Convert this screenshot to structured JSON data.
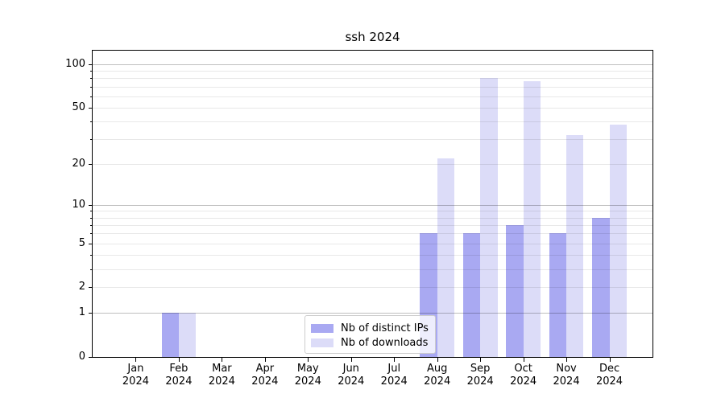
{
  "figure": {
    "title": "ssh 2024",
    "background": "#ffffff"
  },
  "chart_data": {
    "type": "bar",
    "title": "ssh 2024",
    "xlabel": "",
    "ylabel": "",
    "grid": "horizontal",
    "y_axis": {
      "scale": "log10(1+value)",
      "ylim": [
        0,
        124
      ],
      "tick_labels": [
        "100",
        "50",
        "20",
        "10",
        "5",
        "2",
        "1",
        "0"
      ],
      "tick_values": [
        100,
        50,
        20,
        10,
        5,
        2,
        1,
        0
      ],
      "decade_gridlines": [
        1,
        10,
        100
      ],
      "minor_gridlines": [
        2,
        3,
        4,
        5,
        6,
        7,
        8,
        9,
        20,
        30,
        40,
        50,
        60,
        70,
        80,
        90
      ]
    },
    "x_ticks": [
      {
        "line1": "Jan",
        "line2": "2024"
      },
      {
        "line1": "Feb",
        "line2": "2024"
      },
      {
        "line1": "Mar",
        "line2": "2024"
      },
      {
        "line1": "Apr",
        "line2": "2024"
      },
      {
        "line1": "May",
        "line2": "2024"
      },
      {
        "line1": "Jun",
        "line2": "2024"
      },
      {
        "line1": "Jul",
        "line2": "2024"
      },
      {
        "line1": "Aug",
        "line2": "2024"
      },
      {
        "line1": "Sep",
        "line2": "2024"
      },
      {
        "line1": "Oct",
        "line2": "2024"
      },
      {
        "line1": "Nov",
        "line2": "2024"
      },
      {
        "line1": "Dec",
        "line2": "2024"
      }
    ],
    "series": [
      {
        "name": "Nb of distinct IPs",
        "color": "#a9a9f2",
        "values": [
          0,
          1,
          0,
          0,
          0,
          0,
          0,
          6,
          6,
          7,
          6,
          8
        ]
      },
      {
        "name": "Nb of downloads",
        "color": "#dcdcf8",
        "values": [
          0,
          1,
          0,
          0,
          0,
          0,
          0,
          22,
          80,
          76,
          32,
          38
        ]
      }
    ],
    "legend": {
      "position": "lower center",
      "entries": [
        "Nb of distinct IPs",
        "Nb of downloads"
      ]
    }
  },
  "colors": {
    "bar_distinct_ips": "#a9a9f2",
    "bar_downloads": "#dcdcf8",
    "decade_gridline": "rgba(0,0,0,0.25)",
    "minor_gridline": "rgba(0,0,0,0.09)",
    "axis_line": "#000000",
    "legend_border": "#cccccc"
  }
}
